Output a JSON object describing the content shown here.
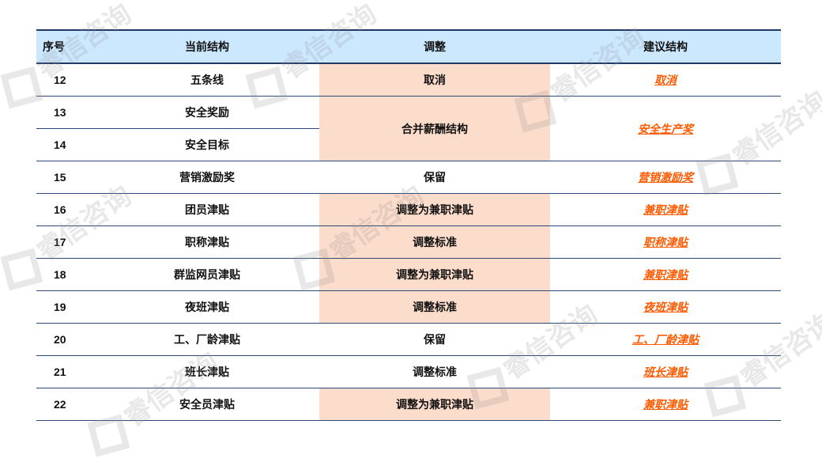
{
  "watermark": "睿信咨询",
  "colors": {
    "header_bg": "#CCE8FF",
    "shade": "#FCDCCA",
    "link": "#FF5A00",
    "border": "#1F3864"
  },
  "table": {
    "headers": [
      "序号",
      "当前结构",
      "调整",
      "建议结构"
    ],
    "rows": [
      {
        "no": "12",
        "current": "五条线",
        "adjust": "取消",
        "suggest": "取消"
      },
      {
        "no": "13",
        "current": "安全奖励",
        "adjust": "合并薪酬结构",
        "suggest": "安全生产奖"
      },
      {
        "no": "14",
        "current": "安全目标"
      },
      {
        "no": "15",
        "current": "营销激励奖",
        "adjust": "保留",
        "suggest": "营销激励奖"
      },
      {
        "no": "16",
        "current": "团员津贴",
        "adjust": "调整为兼职津贴",
        "suggest": "兼职津贴"
      },
      {
        "no": "17",
        "current": "职称津贴",
        "adjust": "调整标准",
        "suggest": "职称津贴"
      },
      {
        "no": "18",
        "current": "群监网员津贴",
        "adjust": "调整为兼职津贴",
        "suggest": "兼职津贴"
      },
      {
        "no": "19",
        "current": "夜班津贴",
        "adjust": "调整标准",
        "suggest": "夜班津贴"
      },
      {
        "no": "20",
        "current": "工、厂龄津贴",
        "adjust": "保留",
        "suggest": "工、厂龄津贴"
      },
      {
        "no": "21",
        "current": "班长津贴",
        "adjust": "调整标准",
        "suggest": "班长津贴"
      },
      {
        "no": "22",
        "current": "安全员津贴",
        "adjust": "调整为兼职津贴",
        "suggest": "兼职津贴"
      }
    ]
  }
}
